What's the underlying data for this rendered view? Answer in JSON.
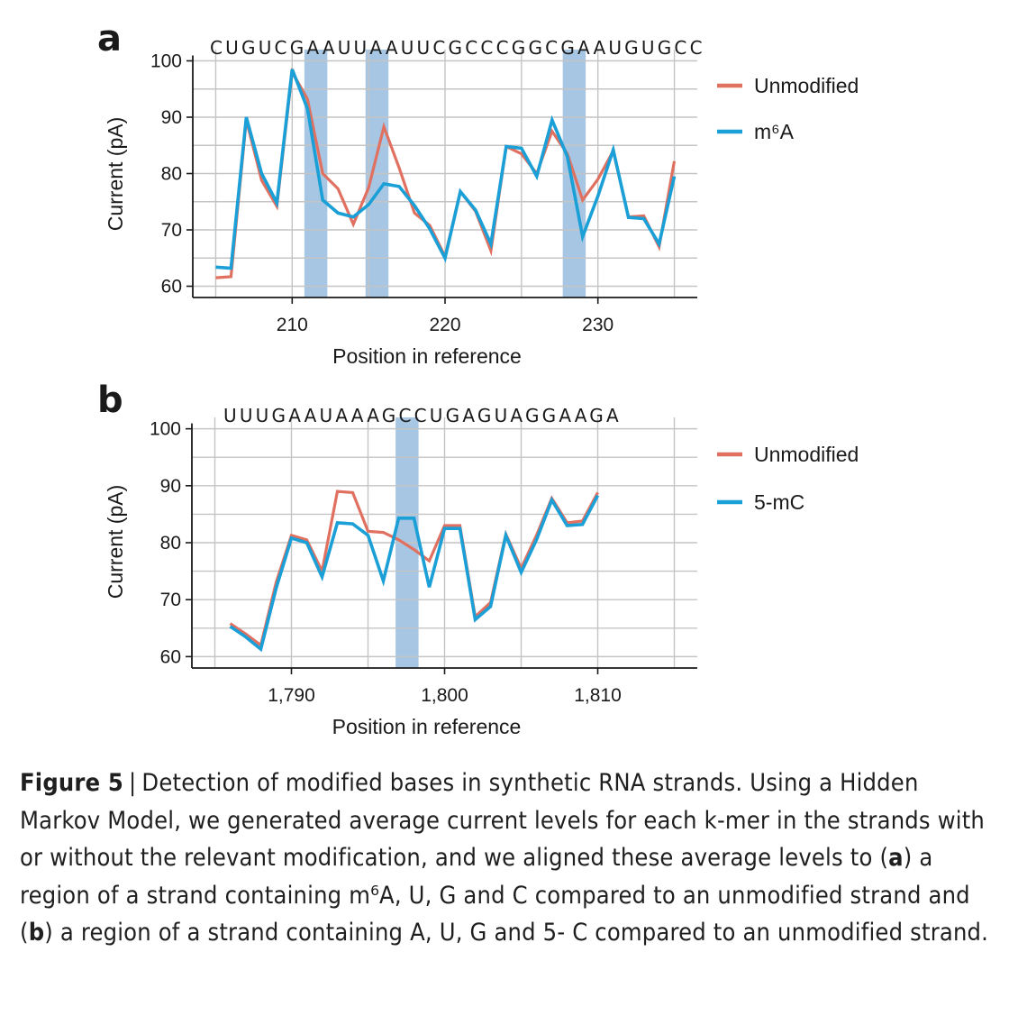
{
  "chart_data": [
    {
      "panel": "a",
      "type": "line",
      "sequence": "CUGUCGAAUUAAUUCGCCCGGCGAAUGUGCC",
      "xlabel": "Position in reference",
      "ylabel": "Current (pA)",
      "xlim": [
        203.5,
        236.5
      ],
      "ylim": [
        58,
        102
      ],
      "xticks": [
        210,
        220,
        230
      ],
      "xtick_labels": [
        "210",
        "220",
        "230"
      ],
      "yticks": [
        60,
        70,
        80,
        90,
        100
      ],
      "ytick_labels": [
        "60",
        "70",
        "80",
        "90",
        "100"
      ],
      "highlight_ranges": [
        [
          210.8,
          212.3
        ],
        [
          214.8,
          216.3
        ],
        [
          227.7,
          229.2
        ]
      ],
      "grid": true,
      "legend_position": "right",
      "x": [
        205,
        206,
        207,
        208,
        209,
        210,
        211,
        212,
        213,
        214,
        215,
        216,
        217,
        218,
        219,
        220,
        221,
        222,
        223,
        224,
        225,
        226,
        227,
        228,
        229,
        230,
        231,
        232,
        233,
        234,
        235
      ],
      "series": [
        {
          "name": "Unmodified",
          "color": "#e07060",
          "values": [
            61.5,
            61.7,
            89.5,
            78.8,
            74.2,
            98.0,
            93.2,
            80.0,
            77.3,
            71.0,
            77.5,
            88.3,
            81.0,
            73.0,
            70.8,
            65.3,
            76.8,
            73.3,
            66.3,
            84.8,
            83.5,
            80.0,
            87.5,
            83.5,
            75.3,
            79.0,
            84.0,
            72.3,
            72.5,
            67.0,
            82.2
          ]
        },
        {
          "name": "m⁶A",
          "color": "#1a9fd6",
          "values": [
            63.4,
            63.2,
            90.0,
            80.0,
            74.8,
            98.5,
            91.5,
            75.3,
            73.0,
            72.3,
            74.5,
            78.2,
            77.7,
            74.3,
            70.2,
            65.0,
            76.8,
            73.5,
            67.5,
            84.8,
            84.5,
            79.5,
            89.5,
            83.0,
            68.8,
            76.0,
            84.2,
            72.2,
            72.0,
            67.5,
            79.5
          ]
        }
      ]
    },
    {
      "panel": "b",
      "type": "line",
      "sequence": "UUUGAAUAAAGCCUGAGUAGGAAGA",
      "xlabel": "Position in reference",
      "ylabel": "Current (pA)",
      "xlim": [
        1783.5,
        1816.5
      ],
      "ylim": [
        58,
        102
      ],
      "xticks": [
        1790,
        1800,
        1810
      ],
      "xtick_labels": [
        "1,790",
        "1,800",
        "1,810"
      ],
      "yticks": [
        60,
        70,
        80,
        90,
        100
      ],
      "ytick_labels": [
        "60",
        "70",
        "80",
        "90",
        "100"
      ],
      "highlight_ranges": [
        [
          1796.8,
          1798.3
        ]
      ],
      "grid": true,
      "legend_position": "right",
      "x": [
        1786,
        1787,
        1788,
        1789,
        1790,
        1791,
        1792,
        1793,
        1794,
        1795,
        1796,
        1797,
        1798,
        1799,
        1800,
        1801,
        1802,
        1803,
        1804,
        1805,
        1806,
        1807,
        1808,
        1809,
        1810
      ],
      "series": [
        {
          "name": "Unmodified",
          "color": "#e07060",
          "values": [
            65.8,
            64.0,
            62.0,
            73.0,
            81.3,
            80.5,
            75.0,
            89.0,
            88.8,
            82.0,
            81.8,
            80.5,
            78.8,
            76.8,
            83.0,
            83.0,
            67.0,
            69.5,
            81.5,
            75.5,
            81.3,
            87.8,
            83.5,
            83.8,
            88.8
          ]
        },
        {
          "name": "5-mC",
          "color": "#1a9fd6",
          "values": [
            65.3,
            63.5,
            61.3,
            72.0,
            80.8,
            80.0,
            74.0,
            83.5,
            83.3,
            81.3,
            73.3,
            84.3,
            84.3,
            72.2,
            82.5,
            82.5,
            66.5,
            68.8,
            81.3,
            74.8,
            80.5,
            87.5,
            83.0,
            83.2,
            88.3
          ]
        }
      ]
    }
  ],
  "panel_labels": {
    "a": "a",
    "b": "b"
  },
  "caption": {
    "figure_label": "Figure 5",
    "separator": "|",
    "text_1": "Detection of modified bases in synthetic RNA strands. Using a Hidden Markov Model, we generated average current levels for each k-mer in the strands with or without the relevant modification, and we aligned these average levels to (",
    "bold_a": "a",
    "text_2": ") a region of a strand containing m⁶A, U, G and C compared to an unmodified strand and (",
    "bold_b": "b",
    "text_3": ") a region of a strand containing A, U, G and 5- C compared to an unmodified strand."
  },
  "colors": {
    "unmodified": "#e07060",
    "modified": "#1a9fd6",
    "highlight": "#a7c6e3",
    "grid": "#c4c4c4"
  }
}
